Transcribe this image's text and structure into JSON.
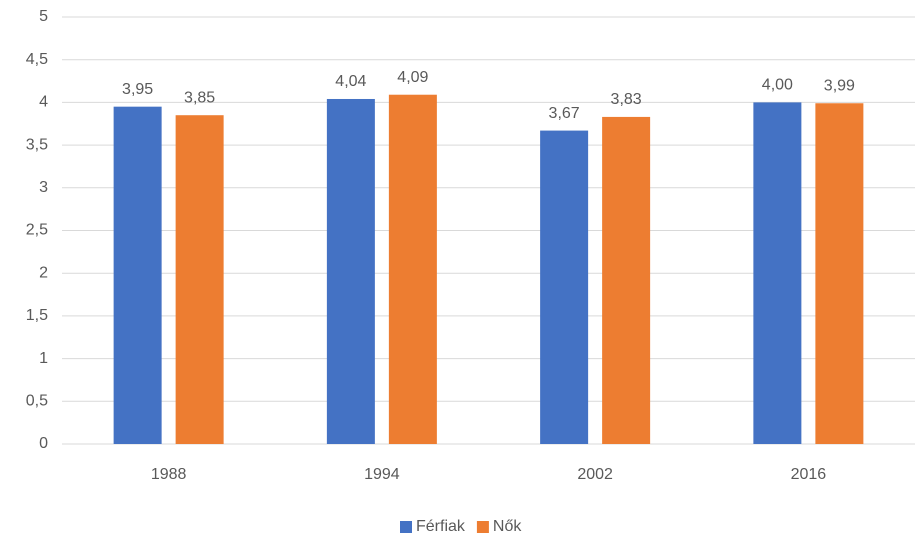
{
  "chart_data": {
    "type": "bar",
    "categories": [
      "1988",
      "1994",
      "2002",
      "2016"
    ],
    "series": [
      {
        "name": "Férfiak",
        "color": "#4472c4",
        "values": [
          3.95,
          4.04,
          3.67,
          4.0
        ],
        "value_labels": [
          "3,95",
          "4,04",
          "3,67",
          "4,00"
        ]
      },
      {
        "name": "Nők",
        "color": "#ed7d31",
        "values": [
          3.85,
          4.09,
          3.83,
          3.99
        ],
        "value_labels": [
          "3,85",
          "4,09",
          "3,83",
          "3,99"
        ]
      }
    ],
    "ylim": [
      0,
      5
    ],
    "yticks": [
      0,
      {
        "value": 0.5,
        "label": "0,5"
      },
      1,
      {
        "value": 1.5,
        "label": "1,5"
      },
      2,
      {
        "value": 2.5,
        "label": "2,5"
      },
      3,
      {
        "value": 3.5,
        "label": "3,5"
      },
      4,
      {
        "value": 4.5,
        "label": "4,5"
      },
      5
    ],
    "grid": true,
    "legend": "bottom"
  }
}
